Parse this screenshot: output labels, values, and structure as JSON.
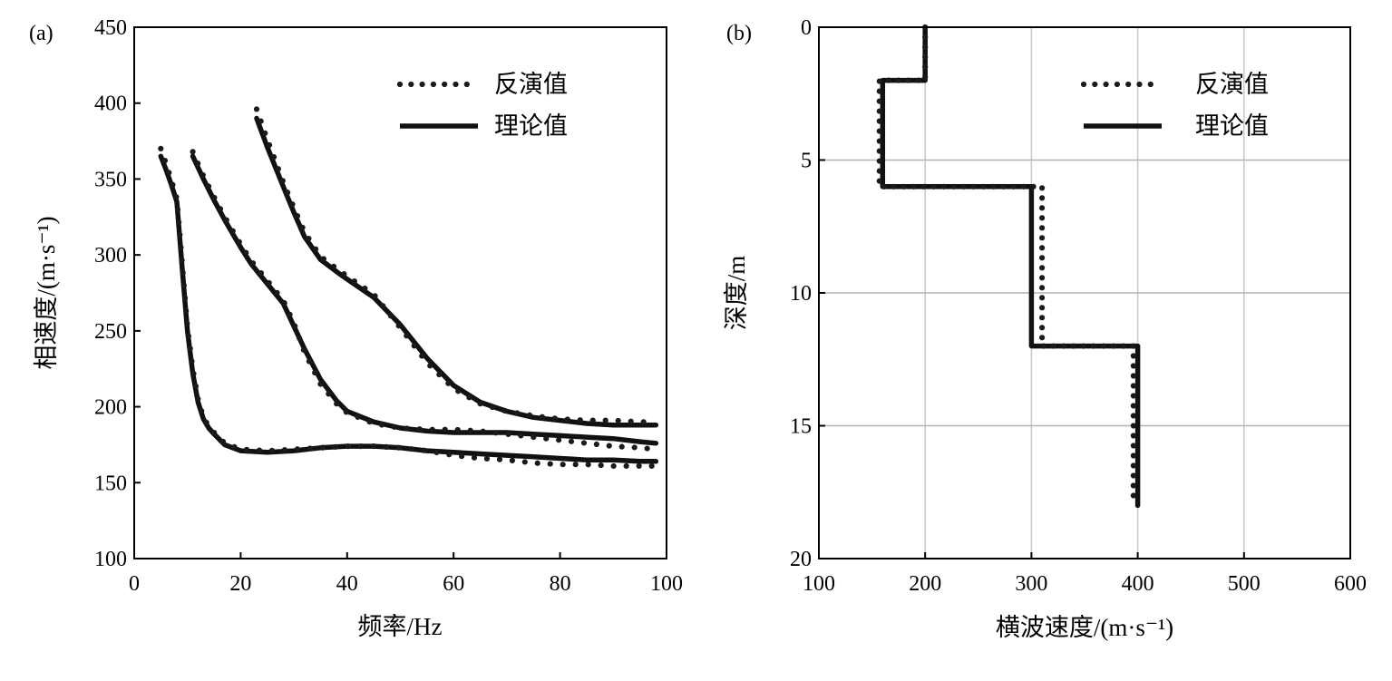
{
  "chart_data": [
    {
      "type": "line",
      "panel_label": "(a)",
      "xlabel": "频率/Hz",
      "ylabel": "相速度/(m·s⁻¹)",
      "xlim": [
        0,
        100
      ],
      "ylim": [
        100,
        450
      ],
      "xticks": [
        0,
        20,
        40,
        60,
        80,
        100
      ],
      "yticks": [
        100,
        150,
        200,
        250,
        300,
        350,
        400,
        450
      ],
      "grid": false,
      "legend_position": "top-right",
      "legend": [
        {
          "label": "反演值",
          "style": "dotted",
          "color": "#1a1a1a"
        },
        {
          "label": "理论值",
          "style": "solid",
          "color": "#111111"
        }
      ],
      "series": [
        {
          "group": "mode-0",
          "style": "solid",
          "x": [
            5,
            6,
            7,
            8,
            9,
            10,
            11,
            12,
            13,
            14,
            15,
            17,
            20,
            25,
            30,
            35,
            40,
            45,
            50,
            55,
            60,
            65,
            70,
            75,
            80,
            85,
            90,
            95,
            98
          ],
          "y": [
            365,
            356,
            346,
            335,
            292,
            250,
            222,
            203,
            192,
            186,
            182,
            175,
            171,
            170,
            171,
            173,
            174,
            174,
            173,
            171,
            170,
            169,
            168,
            167,
            166,
            165,
            165,
            164,
            164
          ]
        },
        {
          "group": "mode-0",
          "style": "dotted",
          "x": [
            5,
            6,
            7,
            8,
            9,
            10,
            11,
            12,
            13,
            14,
            15,
            17,
            20,
            25,
            30,
            35,
            40,
            45,
            50,
            55,
            60,
            65,
            70,
            75,
            80,
            85,
            90,
            95,
            98
          ],
          "y": [
            370,
            360,
            349,
            337,
            295,
            252,
            225,
            205,
            193,
            187,
            183,
            176,
            172,
            171,
            172,
            173,
            174,
            174,
            173,
            171,
            168,
            166,
            165,
            163,
            162,
            162,
            161,
            161,
            161
          ]
        },
        {
          "group": "mode-1",
          "style": "solid",
          "x": [
            11,
            13,
            15,
            17,
            20,
            22,
            25,
            28,
            30,
            32,
            35,
            38,
            40,
            45,
            50,
            55,
            60,
            65,
            70,
            75,
            80,
            85,
            90,
            95,
            98
          ],
          "y": [
            365,
            350,
            336,
            323,
            305,
            294,
            281,
            268,
            253,
            238,
            218,
            204,
            197,
            190,
            186,
            184,
            183,
            183,
            183,
            182,
            181,
            180,
            179,
            177,
            176
          ]
        },
        {
          "group": "mode-1",
          "style": "dotted",
          "x": [
            11,
            13,
            15,
            17,
            20,
            22,
            25,
            28,
            30,
            32,
            35,
            38,
            40,
            45,
            50,
            55,
            60,
            65,
            70,
            75,
            80,
            85,
            90,
            95,
            98
          ],
          "y": [
            368,
            352,
            338,
            325,
            307,
            296,
            283,
            270,
            255,
            236,
            215,
            202,
            196,
            189,
            186,
            185,
            185,
            184,
            182,
            180,
            178,
            176,
            174,
            173,
            172
          ]
        },
        {
          "group": "mode-2",
          "style": "solid",
          "x": [
            23,
            25,
            28,
            30,
            32,
            35,
            38,
            40,
            45,
            50,
            55,
            60,
            65,
            70,
            75,
            80,
            85,
            90,
            95,
            98
          ],
          "y": [
            390,
            371,
            345,
            328,
            312,
            297,
            289,
            284,
            272,
            254,
            232,
            214,
            203,
            197,
            193,
            191,
            189,
            188,
            188,
            188
          ]
        },
        {
          "group": "mode-2",
          "style": "dotted",
          "x": [
            23,
            25,
            28,
            30,
            32,
            35,
            38,
            40,
            45,
            50,
            55,
            60,
            65,
            70,
            75,
            80,
            85,
            90,
            95,
            98
          ],
          "y": [
            396,
            376,
            348,
            331,
            315,
            299,
            291,
            286,
            274,
            252,
            229,
            212,
            202,
            197,
            194,
            192,
            191,
            191,
            190,
            190
          ]
        }
      ]
    },
    {
      "type": "line",
      "panel_label": "(b)",
      "xlabel": "横波速度/(m·s⁻¹)",
      "ylabel": "深度/m",
      "xlim": [
        100,
        600
      ],
      "ylim": [
        0,
        20
      ],
      "y_inverted": true,
      "xticks": [
        100,
        200,
        300,
        400,
        500,
        600
      ],
      "yticks": [
        0,
        5,
        10,
        15,
        20
      ],
      "grid": true,
      "legend_position": "top-right",
      "legend": [
        {
          "label": "反演值",
          "style": "dotted",
          "color": "#1a1a1a"
        },
        {
          "label": "理论值",
          "style": "solid",
          "color": "#111111"
        }
      ],
      "series": [
        {
          "style": "solid",
          "x": [
            200,
            200,
            160,
            160,
            300,
            300,
            400,
            400
          ],
          "y": [
            0,
            2,
            2,
            6,
            6,
            12,
            12,
            18
          ]
        },
        {
          "style": "dotted",
          "x": [
            200,
            200,
            157,
            157,
            310,
            310,
            396,
            396
          ],
          "y": [
            0,
            2,
            2,
            6,
            6,
            12,
            12,
            18
          ]
        }
      ]
    }
  ]
}
